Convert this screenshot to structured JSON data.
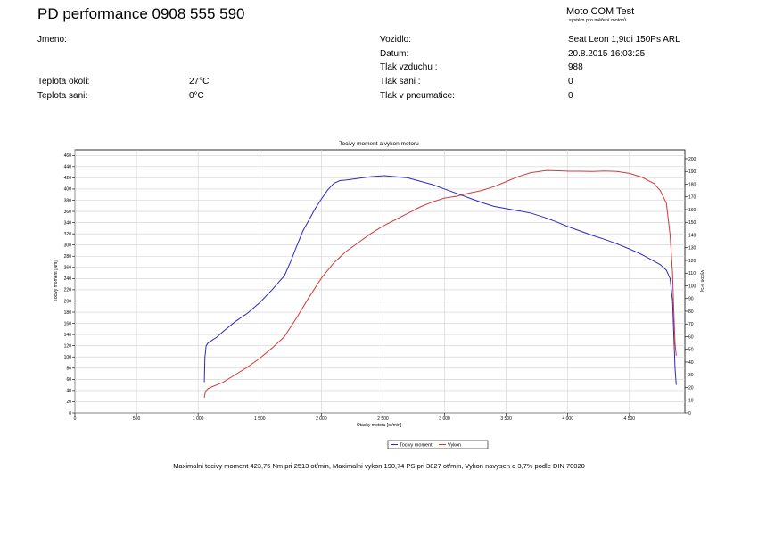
{
  "header": {
    "title": "PD performance 0908 555 590",
    "brand": "Moto COM Test",
    "brand_sub": "systém pro měření motorů"
  },
  "info_left": [
    {
      "label": "Jmeno:",
      "value": ""
    },
    {
      "label": "Teplota okoli:",
      "value": "27°C"
    },
    {
      "label": "Teplota sani:",
      "value": "0°C"
    }
  ],
  "info_right": [
    {
      "label": "Vozidlo:",
      "value": "Seat Leon 1,9tdi 150Ps ARL"
    },
    {
      "label": "Datum:",
      "value": "20.8.2015 16:03:25"
    },
    {
      "label": "Tlak vzduchu :",
      "value": "988"
    },
    {
      "label": "Tlak sani :",
      "value": "0"
    },
    {
      "label": "Tlak v pneumatice:",
      "value": "0"
    }
  ],
  "chart_data": {
    "type": "line",
    "title": "Tocivy moment a vykon motoru",
    "xlabel": "Otacky motoru [ot/min]",
    "ylabel": "Tocivy moment [Nm]",
    "y2label": "Vykon [PS]",
    "xlim": [
      0,
      4950
    ],
    "ylim": [
      0,
      470
    ],
    "y2lim": [
      0,
      207
    ],
    "x_ticks": [
      0,
      500,
      1000,
      1500,
      2000,
      2500,
      3000,
      3500,
      4000,
      4500
    ],
    "x_tick_labels": [
      "0",
      "500",
      "1 000",
      "1 500",
      "2 000",
      "2 500",
      "3 000",
      "3 500",
      "4 000",
      "4 500"
    ],
    "y_ticks": [
      0,
      20,
      40,
      60,
      80,
      100,
      120,
      140,
      160,
      180,
      200,
      220,
      240,
      260,
      280,
      300,
      320,
      340,
      360,
      380,
      400,
      420,
      440,
      460
    ],
    "y2_ticks": [
      0,
      10,
      20,
      30,
      40,
      50,
      60,
      70,
      80,
      90,
      100,
      110,
      120,
      130,
      140,
      150,
      160,
      170,
      180,
      190,
      200
    ],
    "grid": true,
    "legend_position": "bottom-center",
    "series": [
      {
        "name": "Tocivy moment",
        "axis": "left",
        "color": "#2a2ac0",
        "x": [
          1050,
          1055,
          1065,
          1080,
          1100,
          1150,
          1200,
          1300,
          1400,
          1500,
          1600,
          1700,
          1750,
          1800,
          1850,
          1900,
          1950,
          2000,
          2050,
          2100,
          2150,
          2200,
          2300,
          2400,
          2513,
          2600,
          2700,
          2800,
          2900,
          3000,
          3100,
          3200,
          3300,
          3400,
          3500,
          3600,
          3700,
          3800,
          3900,
          4000,
          4100,
          4200,
          4300,
          4400,
          4500,
          4600,
          4700,
          4750,
          4800,
          4830,
          4850,
          4860,
          4870,
          4880
        ],
        "y": [
          55,
          100,
          120,
          125,
          128,
          135,
          145,
          163,
          178,
          197,
          220,
          245,
          270,
          298,
          325,
          345,
          365,
          382,
          398,
          410,
          415,
          416,
          419,
          422,
          423.75,
          422,
          420,
          414,
          408,
          400,
          392,
          384,
          376,
          369,
          365,
          361,
          357,
          350,
          342,
          333,
          325,
          317,
          310,
          302,
          293,
          283,
          271,
          265,
          255,
          240,
          200,
          140,
          80,
          50
        ]
      },
      {
        "name": "Vykon",
        "axis": "right",
        "color": "#d03a3a",
        "x": [
          1050,
          1060,
          1080,
          1100,
          1200,
          1300,
          1400,
          1500,
          1600,
          1700,
          1800,
          1900,
          2000,
          2100,
          2200,
          2300,
          2400,
          2500,
          2600,
          2700,
          2800,
          2900,
          3000,
          3100,
          3200,
          3300,
          3400,
          3500,
          3600,
          3700,
          3827,
          3900,
          4000,
          4100,
          4200,
          4300,
          4400,
          4500,
          4600,
          4700,
          4750,
          4800,
          4830,
          4850,
          4860,
          4870,
          4880
        ],
        "y": [
          12,
          17,
          19,
          20,
          24,
          30,
          36,
          43,
          51,
          60,
          75,
          91,
          106,
          118,
          127,
          134,
          141,
          147,
          152,
          157,
          162,
          166,
          169,
          170.5,
          173,
          175,
          178,
          182,
          186,
          189,
          190.74,
          190.6,
          190.2,
          190.2,
          190,
          190.3,
          190,
          188.5,
          185.5,
          180.5,
          175,
          165,
          140,
          110,
          80,
          55,
          45
        ]
      }
    ],
    "summary": "Maximalni tocivy moment 423,75 Nm pri 2513 ot/min,  Maximalni vykon 190,74 PS pri 3827 ot/min,  Vykon navysen o 3,7% podle DIN 70020"
  }
}
